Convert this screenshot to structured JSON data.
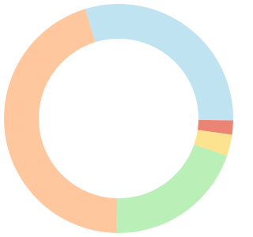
{
  "chart_data": {
    "type": "doughnut",
    "values": [
      30,
      2,
      3,
      20,
      45
    ],
    "colors": [
      "#bfe3f0",
      "#ec8476",
      "#fde28f",
      "#baefb7",
      "#fec79e"
    ],
    "start_angle": 343
  }
}
